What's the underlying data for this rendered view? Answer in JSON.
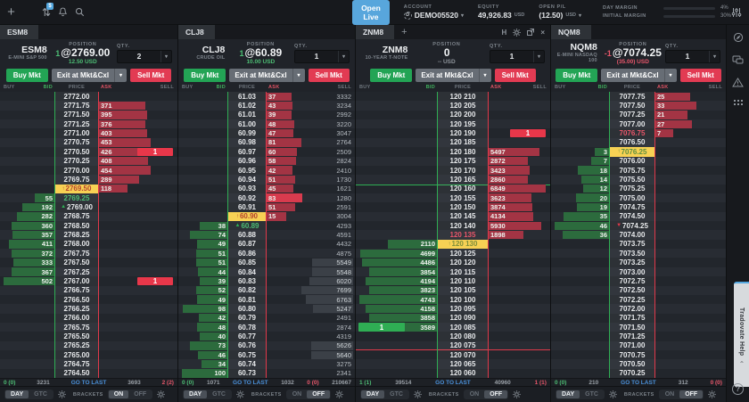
{
  "topbar": {
    "open_live": "Open Live",
    "account_label": "ACCOUNT",
    "account": "DEMO05520",
    "equity_label": "EQUITY",
    "equity": "49,926.83",
    "equity_ccy": "USD",
    "openpl_label": "OPEN P/L",
    "openpl": "(12.50)",
    "openpl_ccy": "USD",
    "day_margin_label": "DAY MARGIN",
    "day_margin_pct": "4%",
    "day_margin_val": 4,
    "initial_margin_label": "INITIAL MARGIN",
    "initial_margin_pct": "30%",
    "initial_margin_val": 30,
    "transfer_badge": "$"
  },
  "labels": {
    "position": "POSITION",
    "qty": "QTY."
  },
  "buttons": {
    "buy": "Buy Mkt",
    "exit": "Exit at Mkt&Cxl",
    "sell": "Sell Mkt"
  },
  "columns": [
    "BUY",
    "BID",
    "PRICE",
    "ASK",
    "SELL"
  ],
  "controls": {
    "day": "DAY",
    "gtc": "GTC",
    "brackets": "BRACKETS",
    "on": "ON",
    "off": "OFF"
  },
  "colors": {
    "accent_blue": "#54a8e0",
    "green": "#3fae5c",
    "red": "#e23b53",
    "last_yellow": "#f7d154"
  },
  "sidebar": {
    "help_label": "Tradovate Help"
  },
  "panels": [
    {
      "tab": "ESM8",
      "name": "ESM8",
      "desc": "E-MINI S&P 500",
      "pos_qty": "1",
      "pos_color": "g",
      "pos_price": "@2769.00",
      "pnl": "12.50 USD",
      "pnl_color": "g",
      "qty": "2",
      "brackets_on": true,
      "last_color": "#b5432e",
      "rows": [
        {
          "p": "2772.00"
        },
        {
          "p": "2771.75",
          "a": "371"
        },
        {
          "p": "2771.50",
          "a": "395"
        },
        {
          "p": "2771.25",
          "a": "376"
        },
        {
          "p": "2771.00",
          "a": "403"
        },
        {
          "p": "2770.75",
          "a": "453"
        },
        {
          "p": "2770.50",
          "a": "426",
          "ord": "s1"
        },
        {
          "p": "2770.25",
          "a": "408"
        },
        {
          "p": "2770.00",
          "a": "454"
        },
        {
          "p": "2769.75",
          "a": "289"
        },
        {
          "p": "2769.50",
          "a": "118",
          "last": 1
        },
        {
          "p": "2769.25",
          "b": "55",
          "pc": "g"
        },
        {
          "p": "2769.00",
          "b": "192",
          "mk": "up"
        },
        {
          "p": "2768.75",
          "b": "282"
        },
        {
          "p": "2768.50",
          "b": "360"
        },
        {
          "p": "2768.25",
          "b": "357"
        },
        {
          "p": "2768.00",
          "b": "411"
        },
        {
          "p": "2767.75",
          "b": "372"
        },
        {
          "p": "2767.50",
          "b": "333"
        },
        {
          "p": "2767.25",
          "b": "367"
        },
        {
          "p": "2767.00",
          "b": "502",
          "ord": "s1"
        },
        {
          "p": "2766.75"
        },
        {
          "p": "2766.50"
        },
        {
          "p": "2766.25"
        },
        {
          "p": "2766.00"
        },
        {
          "p": "2765.75"
        },
        {
          "p": "2765.50"
        },
        {
          "p": "2765.25"
        },
        {
          "p": "2765.00"
        },
        {
          "p": "2764.75"
        },
        {
          "p": "2764.50"
        }
      ],
      "footer": [
        {
          "t": "0 (0)",
          "c": "g"
        },
        {
          "t": "3231"
        },
        {
          "t": "GO TO LAST",
          "c": "b"
        },
        {
          "t": "3693"
        },
        {
          "t": "2 (2)",
          "c": "r"
        }
      ]
    },
    {
      "tab": "CLJ8",
      "name": "CLJ8",
      "desc": "CRUDE OIL",
      "pos_qty": "1",
      "pos_color": "g",
      "pos_price": "@60.89",
      "pnl": "10.00 USD",
      "pnl_color": "g",
      "qty": "1",
      "brackets_on": false,
      "last_color": "#b5432e",
      "rows": [
        {
          "p": "61.03",
          "a": "37",
          "v": "3332"
        },
        {
          "p": "61.02",
          "a": "43",
          "v": "3234"
        },
        {
          "p": "61.01",
          "a": "39",
          "v": "2992"
        },
        {
          "p": "61.00",
          "a": "48",
          "v": "3220"
        },
        {
          "p": "60.99",
          "a": "47",
          "v": "3047"
        },
        {
          "p": "60.98",
          "a": "81",
          "v": "2764"
        },
        {
          "p": "60.97",
          "a": "60",
          "v": "2509"
        },
        {
          "p": "60.96",
          "a": "58",
          "v": "2824"
        },
        {
          "p": "60.95",
          "a": "42",
          "v": "2410"
        },
        {
          "p": "60.94",
          "a": "51",
          "v": "1730"
        },
        {
          "p": "60.93",
          "a": "45",
          "v": "1621"
        },
        {
          "p": "60.92",
          "a": "83",
          "v": "1280",
          "fl": 1
        },
        {
          "p": "60.91",
          "a": "51",
          "v": "2591"
        },
        {
          "p": "60.90",
          "a": "15",
          "v": "3004",
          "last": 1
        },
        {
          "p": "60.89",
          "b": "38",
          "v": "4293",
          "mk": "up",
          "pc": "g"
        },
        {
          "p": "60.88",
          "b": "74",
          "v": "4591"
        },
        {
          "p": "60.87",
          "b": "49",
          "v": "4432"
        },
        {
          "p": "60.86",
          "b": "51",
          "v": "4875"
        },
        {
          "p": "60.85",
          "b": "51",
          "v": "5549"
        },
        {
          "p": "60.84",
          "b": "44",
          "v": "5548"
        },
        {
          "p": "60.83",
          "b": "39",
          "v": "6020"
        },
        {
          "p": "60.82",
          "b": "52",
          "v": "7699"
        },
        {
          "p": "60.81",
          "b": "49",
          "v": "6763"
        },
        {
          "p": "60.80",
          "b": "98",
          "v": "5247"
        },
        {
          "p": "60.79",
          "b": "42",
          "v": "2491"
        },
        {
          "p": "60.78",
          "b": "48",
          "v": "2874"
        },
        {
          "p": "60.77",
          "b": "40",
          "v": "4319"
        },
        {
          "p": "60.76",
          "b": "73",
          "v": "5626"
        },
        {
          "p": "60.75",
          "b": "46",
          "v": "5640"
        },
        {
          "p": "60.74",
          "b": "34",
          "v": "3275"
        },
        {
          "p": "60.73",
          "b": "100",
          "v": "2341"
        }
      ],
      "footer": [
        {
          "t": "0 (0)",
          "c": "g"
        },
        {
          "t": "1071"
        },
        {
          "t": "GO TO LAST",
          "c": "b"
        },
        {
          "t": "1032"
        },
        {
          "t": "0 (0)",
          "c": "r"
        },
        {
          "t": "210667"
        }
      ]
    },
    {
      "tab": "ZNM8",
      "name": "ZNM8",
      "desc": "10-YEAR T-NOTE",
      "pos_qty": "",
      "pos_color": "",
      "pos_price": "0",
      "pnl": "-- USD",
      "pnl_color": "m",
      "qty": "1",
      "brackets_on": false,
      "last_color": "#7f8f3a",
      "tab_plus": "+",
      "win_h": "H",
      "win_close": "×",
      "rows": [
        {
          "p": "120 210"
        },
        {
          "p": "120 205"
        },
        {
          "p": "120 200"
        },
        {
          "p": "120 195"
        },
        {
          "p": "120 190",
          "ord": "s1"
        },
        {
          "p": "120 185"
        },
        {
          "p": "120 180",
          "a": "5497"
        },
        {
          "p": "120 175",
          "a": "2872"
        },
        {
          "p": "120 170",
          "a": "3423"
        },
        {
          "p": "120 165",
          "a": "2860"
        },
        {
          "p": "120 160",
          "a": "6849",
          "lt": 1
        },
        {
          "p": "120 155",
          "a": "3623"
        },
        {
          "p": "120 150",
          "a": "3874"
        },
        {
          "p": "120 145",
          "a": "4134"
        },
        {
          "p": "120 140",
          "a": "5930"
        },
        {
          "p": "120 135",
          "a": "1898",
          "pc": "r"
        },
        {
          "p": "120 130",
          "b": "2110",
          "last": 1
        },
        {
          "p": "120 125",
          "b": "4699"
        },
        {
          "p": "120 120",
          "b": "4486"
        },
        {
          "p": "120 115",
          "b": "3854"
        },
        {
          "p": "120 110",
          "b": "4194"
        },
        {
          "p": "120 105",
          "b": "3823"
        },
        {
          "p": "120 100",
          "b": "4743"
        },
        {
          "p": "120 095",
          "b": "4158"
        },
        {
          "p": "120 090",
          "b": "3858"
        },
        {
          "p": "120 085",
          "b": "3589",
          "ord": "b1"
        },
        {
          "p": "120 080"
        },
        {
          "p": "120 075",
          "lb": 1
        },
        {
          "p": "120 070"
        },
        {
          "p": "120 065"
        },
        {
          "p": "120 060"
        }
      ],
      "footer": [
        {
          "t": "1 (1)",
          "c": "g"
        },
        {
          "t": "39514"
        },
        {
          "t": "GO TO LAST",
          "c": "b"
        },
        {
          "t": "40960"
        },
        {
          "t": "1 (1)",
          "c": "r"
        }
      ]
    },
    {
      "tab": "NQM8",
      "name": "NQM8",
      "desc": "E-MINI NASDAQ 100",
      "pos_qty": "-1",
      "pos_color": "r",
      "pos_price": "@7074.25",
      "pnl": "(35.00) USD",
      "pnl_color": "r",
      "qty": "1",
      "brackets_on": false,
      "last_color": "#5d8f3f",
      "rows": [
        {
          "p": "7077.75",
          "a": "25"
        },
        {
          "p": "7077.50",
          "a": "33"
        },
        {
          "p": "7077.25",
          "a": "21"
        },
        {
          "p": "7077.00",
          "a": "27"
        },
        {
          "p": "7076.75",
          "a": "7",
          "pc": "r"
        },
        {
          "p": "7076.50"
        },
        {
          "p": "7076.25",
          "b": "3",
          "last": 1
        },
        {
          "p": "7076.00",
          "b": "7"
        },
        {
          "p": "7075.75",
          "b": "18"
        },
        {
          "p": "7075.50",
          "b": "14"
        },
        {
          "p": "7075.25",
          "b": "12"
        },
        {
          "p": "7075.00",
          "b": "20"
        },
        {
          "p": "7074.75",
          "b": "19"
        },
        {
          "p": "7074.50",
          "b": "35"
        },
        {
          "p": "7074.25",
          "b": "46",
          "mk": "dn"
        },
        {
          "p": "7074.00",
          "b": "36"
        },
        {
          "p": "7073.75"
        },
        {
          "p": "7073.50"
        },
        {
          "p": "7073.25"
        },
        {
          "p": "7073.00"
        },
        {
          "p": "7072.75"
        },
        {
          "p": "7072.50"
        },
        {
          "p": "7072.25"
        },
        {
          "p": "7072.00"
        },
        {
          "p": "7071.75"
        },
        {
          "p": "7071.50"
        },
        {
          "p": "7071.25"
        },
        {
          "p": "7071.00"
        },
        {
          "p": "7070.75"
        },
        {
          "p": "7070.50"
        },
        {
          "p": "7070.25"
        }
      ],
      "footer": [
        {
          "t": "0 (0)",
          "c": "g"
        },
        {
          "t": "210"
        },
        {
          "t": "GO TO LAST",
          "c": "b"
        },
        {
          "t": "312"
        },
        {
          "t": "0 (0)",
          "c": "r"
        }
      ]
    }
  ]
}
